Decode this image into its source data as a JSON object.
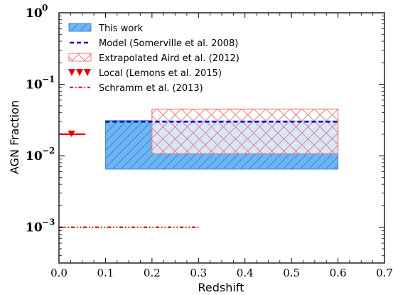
{
  "chart_data": {
    "type": "area",
    "xlabel": "Redshift",
    "ylabel": "AGN Fraction",
    "xlim": [
      0.0,
      0.7
    ],
    "ylim_log10": [
      -3.5,
      0.0
    ],
    "y_scale": "log",
    "grid": false,
    "legend_placement": "top-left",
    "x_ticks": [
      "0.0",
      "0.1",
      "0.2",
      "0.3",
      "0.4",
      "0.5",
      "0.6",
      "0.7"
    ],
    "y_ticks": [
      {
        "base": "10",
        "exp": "0",
        "value": 1.0
      },
      {
        "base": "10",
        "exp": "−1",
        "value": 0.1
      },
      {
        "base": "10",
        "exp": "−2",
        "value": 0.01
      },
      {
        "base": "10",
        "exp": "−3",
        "value": 0.001
      }
    ],
    "series": [
      {
        "name": "This work",
        "kind": "hatched-band",
        "x_range": [
          0.1,
          0.6
        ],
        "y_low": 0.0065,
        "y_high": 0.031,
        "color": "#5aaaf0"
      },
      {
        "name": "Model (Somerville et al. 2008)",
        "kind": "dashed-line",
        "x_range": [
          0.1,
          0.6
        ],
        "y": 0.03,
        "color": "#0000cc"
      },
      {
        "name": "Extrapolated Aird et al. (2012)",
        "kind": "crosshatched-band",
        "x_range": [
          0.2,
          0.6
        ],
        "y_low": 0.0107,
        "y_high": 0.045,
        "color": "#f07c7c"
      },
      {
        "name": "Local (Lemons et al. 2015)",
        "kind": "marker-with-errorbar",
        "x": 0.027,
        "x_err_range": [
          0.0,
          0.057
        ],
        "y": 0.02,
        "y_marker": 0.0205,
        "color": "#ee0000"
      },
      {
        "name": "Schramm et al. (2013)",
        "kind": "dashdot-line",
        "x_range": [
          0.0,
          0.3
        ],
        "y": 0.001,
        "color": "#ee0000"
      }
    ]
  }
}
